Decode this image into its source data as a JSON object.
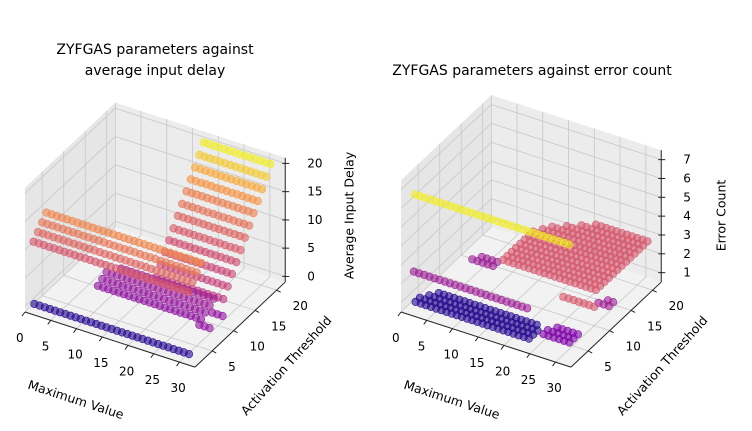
{
  "chart_data": [
    {
      "type": "scatter3d",
      "title": "ZYFGAS parameters against\naverage input delay",
      "title_lines": [
        "ZYFGAS parameters against",
        "average input delay"
      ],
      "xlabel": "Maximum Value",
      "ylabel": "Activation Threshold",
      "zlabel": "Average Input Delay",
      "xlim": [
        0,
        33
      ],
      "ylim": [
        1,
        22
      ],
      "zlim": [
        -1,
        21
      ],
      "xticks": [
        "0",
        "5",
        "10",
        "15",
        "20",
        "25",
        "30"
      ],
      "yticks": [
        "5",
        "10",
        "15",
        "20"
      ],
      "zticks": [
        "0",
        "5",
        "10",
        "15",
        "20"
      ],
      "colormap": "plasma",
      "grid": true,
      "rows": [
        {
          "x": [
            1,
            31
          ],
          "y": 2,
          "z": 0,
          "c": 0.05
        },
        {
          "x": [
            10,
            30
          ],
          "y": 6,
          "z": 3,
          "c": 0.3
        },
        {
          "x": [
            10,
            30
          ],
          "y": 7,
          "z": 3.5,
          "c": 0.32
        },
        {
          "x": [
            10,
            30
          ],
          "y": 8,
          "z": 4,
          "c": 0.34
        },
        {
          "x": [
            12,
            30
          ],
          "y": 9,
          "z": 4.5,
          "c": 0.36
        },
        {
          "x": [
            28,
            30
          ],
          "y": 8,
          "z": 0,
          "c": 0.3
        },
        {
          "x": [
            28,
            30
          ],
          "y": 11,
          "z": 0,
          "c": 0.3
        },
        {
          "x": [
            0,
            30
          ],
          "y": 3,
          "z": 10,
          "c": 0.55
        },
        {
          "x": [
            0,
            30
          ],
          "y": 4,
          "z": 11,
          "c": 0.6
        },
        {
          "x": [
            0,
            30
          ],
          "y": 5,
          "z": 12,
          "c": 0.65
        },
        {
          "x": [
            0,
            30
          ],
          "y": 6,
          "z": 13,
          "c": 0.7
        },
        {
          "x": [
            18,
            31
          ],
          "y": 10,
          "z": 4,
          "c": 0.45
        },
        {
          "x": [
            18,
            31
          ],
          "y": 11,
          "z": 5.5,
          "c": 0.48
        },
        {
          "x": [
            18,
            31
          ],
          "y": 12,
          "z": 7,
          "c": 0.5
        },
        {
          "x": [
            18,
            31
          ],
          "y": 13,
          "z": 8.4,
          "c": 0.53
        },
        {
          "x": [
            18,
            31
          ],
          "y": 14,
          "z": 9.8,
          "c": 0.56
        },
        {
          "x": [
            18,
            31
          ],
          "y": 15,
          "z": 11.3,
          "c": 0.6
        },
        {
          "x": [
            18,
            31
          ],
          "y": 16,
          "z": 12.7,
          "c": 0.64
        },
        {
          "x": [
            18,
            31
          ],
          "y": 17,
          "z": 14.2,
          "c": 0.68
        },
        {
          "x": [
            18,
            31
          ],
          "y": 18,
          "z": 15.6,
          "c": 0.74
        },
        {
          "x": [
            18,
            31
          ],
          "y": 19,
          "z": 17,
          "c": 0.8
        },
        {
          "x": [
            18,
            31
          ],
          "y": 20,
          "z": 18.5,
          "c": 0.88
        },
        {
          "x": [
            18,
            31
          ],
          "y": 21,
          "z": 20,
          "c": 0.97
        }
      ]
    },
    {
      "type": "scatter3d",
      "title": "ZYFGAS parameters against error count",
      "title_lines": [
        "ZYFGAS parameters against error count"
      ],
      "xlabel": "Maximum Value",
      "ylabel": "Activation Threshold",
      "zlabel": "Error Count",
      "xlim": [
        0,
        33
      ],
      "ylim": [
        1,
        22
      ],
      "zlim": [
        0.5,
        7.5
      ],
      "xticks": [
        "0",
        "5",
        "10",
        "15",
        "20",
        "25",
        "30"
      ],
      "yticks": [
        "5",
        "10",
        "15",
        "20"
      ],
      "zticks": [
        "1",
        "2",
        "3",
        "4",
        "5",
        "6",
        "7"
      ],
      "colormap": "plasma",
      "grid": true,
      "rows": [
        {
          "x": [
            2,
            24
          ],
          "y": 2,
          "z": 1,
          "c": 0.05
        },
        {
          "x": [
            2,
            24
          ],
          "y": 3,
          "z": 1,
          "c": 0.05
        },
        {
          "x": [
            3,
            24
          ],
          "y": 4,
          "z": 1,
          "c": 0.05
        },
        {
          "x": [
            4,
            23
          ],
          "y": 5,
          "z": 1,
          "c": 0.05
        },
        {
          "x": [
            26,
            31
          ],
          "y": 3,
          "z": 1.2,
          "c": 0.25
        },
        {
          "x": [
            26,
            31
          ],
          "y": 4,
          "z": 1.2,
          "c": 0.25
        },
        {
          "x": [
            27,
            31
          ],
          "y": 5,
          "z": 1.2,
          "c": 0.25
        },
        {
          "x": [
            0,
            22
          ],
          "y": 4,
          "z": 2,
          "c": 0.35
        },
        {
          "x": [
            24,
            30
          ],
          "y": 10,
          "z": 1.5,
          "c": 0.55
        },
        {
          "x": [
            30,
            32
          ],
          "y": 11,
          "z": 1.5,
          "c": 0.35
        },
        {
          "x": [
            31,
            32
          ],
          "y": 12,
          "z": 1.5,
          "c": 0.35
        },
        {
          "x": [
            8,
            12
          ],
          "y": 8,
          "z": 2.5,
          "c": 0.35
        },
        {
          "x": [
            9,
            12
          ],
          "y": 9,
          "z": 2.5,
          "c": 0.35
        },
        {
          "x": [
            14,
            32
          ],
          "y": 8,
          "z": 3,
          "c": 0.55
        },
        {
          "x": [
            14,
            32
          ],
          "y": 9,
          "z": 3,
          "c": 0.55
        },
        {
          "x": [
            14,
            32
          ],
          "y": 10,
          "z": 3,
          "c": 0.55
        },
        {
          "x": [
            14,
            32
          ],
          "y": 11,
          "z": 3,
          "c": 0.55
        },
        {
          "x": [
            14,
            32
          ],
          "y": 12,
          "z": 3,
          "c": 0.55
        },
        {
          "x": [
            14,
            32
          ],
          "y": 13,
          "z": 3,
          "c": 0.55
        },
        {
          "x": [
            14,
            32
          ],
          "y": 14,
          "z": 3,
          "c": 0.55
        },
        {
          "x": [
            14,
            32
          ],
          "y": 15,
          "z": 3,
          "c": 0.55
        },
        {
          "x": [
            15,
            32
          ],
          "y": 16,
          "z": 3,
          "c": 0.55
        },
        {
          "x": [
            16,
            32
          ],
          "y": 17,
          "z": 3,
          "c": 0.55
        },
        {
          "x": [
            18,
            32
          ],
          "y": 18,
          "z": 3,
          "c": 0.55
        },
        {
          "x": [
            20,
            32
          ],
          "y": 19,
          "z": 3,
          "c": 0.55
        },
        {
          "x": [
            22,
            32
          ],
          "y": 20,
          "z": 3,
          "c": 0.55
        },
        {
          "x": [
            1,
            31
          ],
          "y": 3,
          "z": 6.4,
          "c": 0.97
        }
      ]
    }
  ]
}
